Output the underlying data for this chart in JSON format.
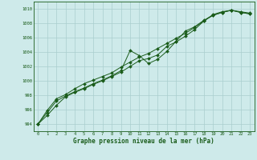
{
  "xlabel": "Graphe pression niveau de la mer (hPa)",
  "xlim": [
    -0.5,
    23.5
  ],
  "ylim": [
    993.0,
    1011.0
  ],
  "yticks": [
    994,
    996,
    998,
    1000,
    1002,
    1004,
    1006,
    1008,
    1010
  ],
  "xticks": [
    0,
    1,
    2,
    3,
    4,
    5,
    6,
    7,
    8,
    9,
    10,
    11,
    12,
    13,
    14,
    15,
    16,
    17,
    18,
    19,
    20,
    21,
    22,
    23
  ],
  "background_color": "#ceeaea",
  "grid_color": "#aacece",
  "line_color": "#1a5c1a",
  "line1": [
    994.0,
    995.2,
    996.6,
    997.8,
    998.4,
    998.9,
    999.5,
    1000.0,
    1000.6,
    1001.2,
    1002.0,
    1002.8,
    1003.1,
    1003.6,
    1004.8,
    1005.4,
    1006.2,
    1007.1,
    1008.3,
    1009.2,
    1009.6,
    1009.8,
    1009.5,
    1009.3
  ],
  "line2": [
    994.0,
    995.6,
    997.2,
    997.9,
    998.5,
    999.0,
    999.6,
    1000.1,
    1000.7,
    1001.4,
    1004.2,
    1003.5,
    1002.4,
    1003.0,
    1004.1,
    1005.5,
    1006.9,
    1007.5,
    1008.4,
    1009.1,
    1009.5,
    1009.8,
    1009.5,
    1009.3
  ],
  "line3": [
    994.0,
    995.9,
    997.5,
    998.1,
    998.9,
    999.6,
    1000.1,
    1000.6,
    1001.1,
    1001.9,
    1002.6,
    1003.3,
    1003.8,
    1004.5,
    1005.2,
    1005.9,
    1006.6,
    1007.4,
    1008.3,
    1009.1,
    1009.5,
    1009.8,
    1009.6,
    1009.4
  ]
}
